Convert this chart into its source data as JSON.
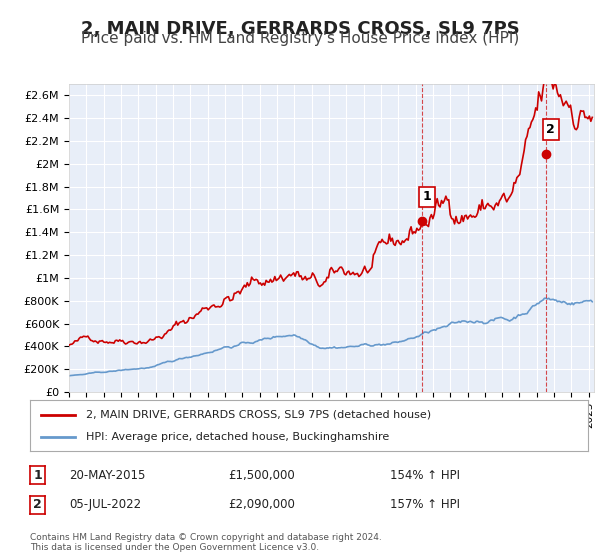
{
  "title": "2, MAIN DRIVE, GERRARDS CROSS, SL9 7PS",
  "subtitle": "Price paid vs. HM Land Registry's House Price Index (HPI)",
  "title_fontsize": 13,
  "subtitle_fontsize": 11,
  "background_color": "#ffffff",
  "plot_bg_color": "#e8eef8",
  "grid_color": "#ffffff",
  "red_line_color": "#cc0000",
  "blue_line_color": "#6699cc",
  "ylim": [
    0,
    2700000
  ],
  "yticks": [
    0,
    200000,
    400000,
    600000,
    800000,
    1000000,
    1200000,
    1400000,
    1600000,
    1800000,
    2000000,
    2200000,
    2400000,
    2600000
  ],
  "ytick_labels": [
    "£0",
    "£200K",
    "£400K",
    "£600K",
    "£800K",
    "£1M",
    "£1.2M",
    "£1.4M",
    "£1.6M",
    "£1.8M",
    "£2M",
    "£2.2M",
    "£2.4M",
    "£2.6M"
  ],
  "xlim_start": 1995.0,
  "xlim_end": 2025.3,
  "sale1_x": 2015.38,
  "sale1_y": 1500000,
  "sale1_label": "1",
  "sale2_x": 2022.51,
  "sale2_y": 2090000,
  "sale2_label": "2",
  "legend_red": "2, MAIN DRIVE, GERRARDS CROSS, SL9 7PS (detached house)",
  "legend_blue": "HPI: Average price, detached house, Buckinghamshire",
  "annotation1_date": "20-MAY-2015",
  "annotation1_price": "£1,500,000",
  "annotation1_pct": "154% ↑ HPI",
  "annotation2_date": "05-JUL-2022",
  "annotation2_price": "£2,090,000",
  "annotation2_pct": "157% ↑ HPI",
  "footer1": "Contains HM Land Registry data © Crown copyright and database right 2024.",
  "footer2": "This data is licensed under the Open Government Licence v3.0."
}
